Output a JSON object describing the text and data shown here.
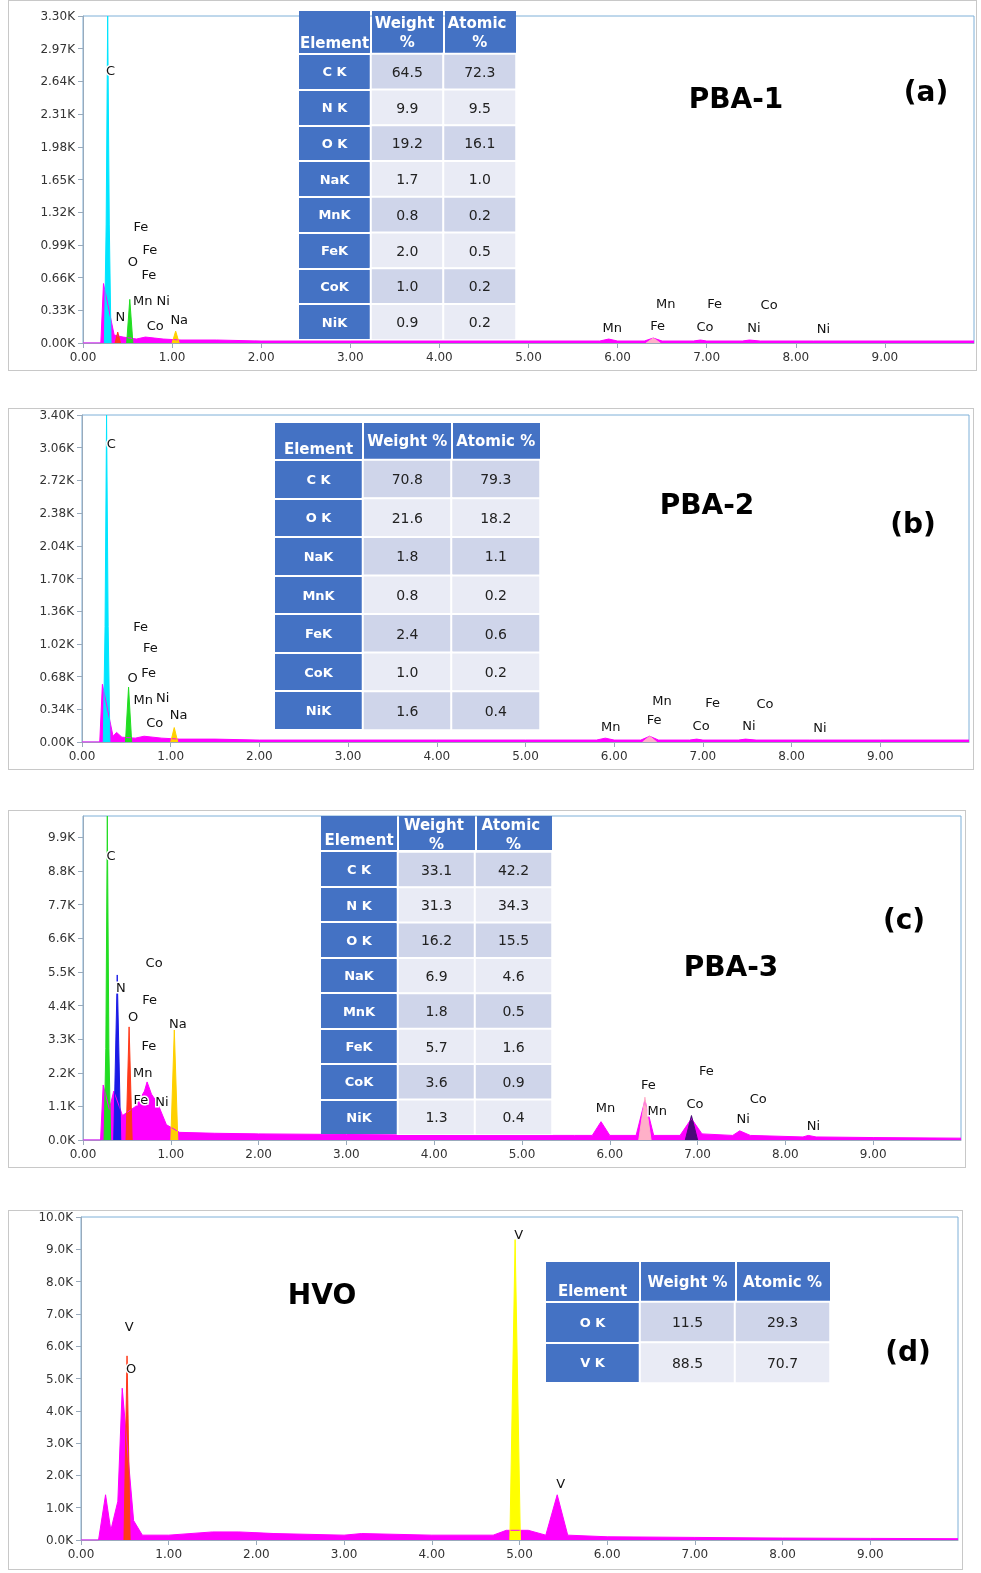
{
  "chart_data": [
    {
      "type": "area",
      "title": "PBA-1",
      "annotations": [
        "(a)",
        "C",
        "Fe",
        "O",
        "Fe",
        "Fe",
        "Mn",
        "Ni",
        "N",
        "Co",
        "Na",
        "Mn",
        "Mn",
        "Fe",
        "Fe",
        "Co",
        "Co",
        "Ni",
        "Ni"
      ],
      "xlim": [
        0,
        10
      ],
      "xticks": [
        {
          "value": 0,
          "label": "0.00"
        },
        {
          "value": 1,
          "label": "1.00"
        },
        {
          "value": 2,
          "label": "2.00"
        },
        {
          "value": 3,
          "label": "3.00"
        },
        {
          "value": 4,
          "label": "4.00"
        },
        {
          "value": 5,
          "label": "5.00"
        },
        {
          "value": 6,
          "label": "6.00"
        },
        {
          "value": 7,
          "label": "7.00"
        },
        {
          "value": 8,
          "label": "8.00"
        },
        {
          "value": 9,
          "label": "9.00"
        }
      ],
      "ylim": [
        0,
        3300
      ],
      "yticks": [
        {
          "value": 0,
          "label": "0.00K"
        },
        {
          "value": 330,
          "label": "0.33K"
        },
        {
          "value": 660,
          "label": "0.66K"
        },
        {
          "value": 990,
          "label": "0.99K"
        },
        {
          "value": 1320,
          "label": "1.32K"
        },
        {
          "value": 1650,
          "label": "1.65K"
        },
        {
          "value": 1980,
          "label": "1.98K"
        },
        {
          "value": 2310,
          "label": "2.31K"
        },
        {
          "value": 2640,
          "label": "2.64K"
        },
        {
          "value": 2970,
          "label": "2.97K"
        },
        {
          "value": 3300,
          "label": "3.30K"
        }
      ],
      "series": [
        {
          "color": "#ff00ff",
          "x": [
            0,
            0.2,
            0.23,
            0.35,
            0.45,
            0.6,
            0.7,
            0.8,
            0.9,
            1.1,
            1.5,
            2,
            3,
            4,
            5,
            5.8,
            5.9,
            6.0,
            6.3,
            6.4,
            6.5,
            6.85,
            6.93,
            7.0,
            7.4,
            7.48,
            7.6,
            8.2,
            8.26,
            8.35,
            9,
            10
          ],
          "values": [
            0,
            0,
            600,
            80,
            60,
            40,
            60,
            50,
            40,
            30,
            30,
            20,
            20,
            20,
            20,
            20,
            40,
            20,
            20,
            50,
            20,
            20,
            30,
            20,
            20,
            30,
            20,
            20,
            20,
            20,
            20,
            20
          ]
        },
        {
          "color": "#00e5ff",
          "x": [
            0.24,
            0.26,
            0.277,
            0.295,
            0.315
          ],
          "values": [
            0,
            1200,
            3300,
            1200,
            0
          ]
        },
        {
          "color": "#ff3a1a",
          "x": [
            0.36,
            0.39,
            0.42
          ],
          "values": [
            0,
            110,
            0
          ]
        },
        {
          "color": "#22dd22",
          "x": [
            0.49,
            0.525,
            0.56
          ],
          "values": [
            0,
            440,
            0
          ]
        },
        {
          "color": "#ffd000",
          "x": [
            1.0,
            1.04,
            1.08
          ],
          "values": [
            0,
            120,
            0
          ]
        },
        {
          "color": "#ffb0c8",
          "x": [
            6.32,
            6.4,
            6.48
          ],
          "values": [
            0,
            50,
            0
          ]
        }
      ]
    },
    {
      "type": "heatmap",
      "ylabel": "Element",
      "categories": [
        "Weight %",
        "Atomic %"
      ],
      "y_categories": [
        "C K",
        "N K",
        "O K",
        "NaK",
        "MnK",
        "FeK",
        "CoK",
        "NiK"
      ],
      "data_labels": true,
      "cells": [
        [
          64.5,
          72.3
        ],
        [
          9.9,
          9.5
        ],
        [
          19.2,
          16.1
        ],
        [
          1.7,
          1.0
        ],
        [
          0.8,
          0.2
        ],
        [
          2.0,
          0.5
        ],
        [
          1.0,
          0.2
        ],
        [
          0.9,
          0.2
        ]
      ],
      "cell_labels": [
        [
          "64.5",
          "72.3"
        ],
        [
          "9.9",
          "9.5"
        ],
        [
          "19.2",
          "16.1"
        ],
        [
          "1.7",
          "1.0"
        ],
        [
          "0.8",
          "0.2"
        ],
        [
          "2.0",
          "0.5"
        ],
        [
          "1.0",
          "0.2"
        ],
        [
          "0.9",
          "0.2"
        ]
      ]
    },
    {
      "type": "area",
      "title": "PBA-2",
      "annotations": [
        "(b)",
        "C",
        "Fe",
        "Fe",
        "O",
        "Fe",
        "Mn",
        "Ni",
        "Co",
        "Na",
        "Mn",
        "Mn",
        "Fe",
        "Fe",
        "Co",
        "Co",
        "Ni",
        "Ni"
      ],
      "xlim": [
        0,
        10
      ],
      "xticks": [
        {
          "value": 0,
          "label": "0.00"
        },
        {
          "value": 1,
          "label": "1.00"
        },
        {
          "value": 2,
          "label": "2.00"
        },
        {
          "value": 3,
          "label": "3.00"
        },
        {
          "value": 4,
          "label": "4.00"
        },
        {
          "value": 5,
          "label": "5.00"
        },
        {
          "value": 6,
          "label": "6.00"
        },
        {
          "value": 7,
          "label": "7.00"
        },
        {
          "value": 8,
          "label": "8.00"
        },
        {
          "value": 9,
          "label": "9.00"
        }
      ],
      "ylim": [
        0,
        3400
      ],
      "yticks": [
        {
          "value": 0,
          "label": "0.00K"
        },
        {
          "value": 340,
          "label": "0.34K"
        },
        {
          "value": 680,
          "label": "0.68K"
        },
        {
          "value": 1020,
          "label": "1.02K"
        },
        {
          "value": 1360,
          "label": "1.36K"
        },
        {
          "value": 1700,
          "label": "1.70K"
        },
        {
          "value": 2040,
          "label": "2.04K"
        },
        {
          "value": 2380,
          "label": "2.38K"
        },
        {
          "value": 2720,
          "label": "2.72K"
        },
        {
          "value": 3060,
          "label": "3.06K"
        },
        {
          "value": 3400,
          "label": "3.40K"
        }
      ],
      "series": [
        {
          "color": "#ff00ff",
          "x": [
            0,
            0.2,
            0.23,
            0.35,
            0.39,
            0.45,
            0.6,
            0.7,
            0.8,
            0.9,
            1.1,
            1.5,
            2,
            3,
            4,
            5,
            5.8,
            5.9,
            6.0,
            6.3,
            6.4,
            6.5,
            6.85,
            6.93,
            7.0,
            7.4,
            7.48,
            7.6,
            8.2,
            8.26,
            8.35,
            9,
            10
          ],
          "values": [
            0,
            0,
            600,
            60,
            100,
            50,
            40,
            60,
            50,
            40,
            30,
            30,
            20,
            20,
            20,
            20,
            20,
            40,
            20,
            20,
            60,
            20,
            20,
            30,
            20,
            20,
            30,
            20,
            20,
            20,
            20,
            20,
            20
          ]
        },
        {
          "color": "#00e5ff",
          "x": [
            0.24,
            0.26,
            0.277,
            0.295,
            0.315
          ],
          "values": [
            0,
            1200,
            3400,
            1200,
            0
          ]
        },
        {
          "color": "#22dd22",
          "x": [
            0.49,
            0.525,
            0.56
          ],
          "values": [
            0,
            570,
            0
          ]
        },
        {
          "color": "#ffd000",
          "x": [
            1.0,
            1.04,
            1.08
          ],
          "values": [
            0,
            150,
            0
          ]
        },
        {
          "color": "#ffb0c8",
          "x": [
            6.32,
            6.4,
            6.48
          ],
          "values": [
            0,
            60,
            0
          ]
        }
      ]
    },
    {
      "type": "heatmap",
      "ylabel": "Element",
      "categories": [
        "Weight %",
        "Atomic %"
      ],
      "y_categories": [
        "C K",
        "O K",
        "NaK",
        "MnK",
        "FeK",
        "CoK",
        "NiK"
      ],
      "data_labels": true,
      "cells": [
        [
          70.8,
          79.3
        ],
        [
          21.6,
          18.2
        ],
        [
          1.8,
          1.1
        ],
        [
          0.8,
          0.2
        ],
        [
          2.4,
          0.6
        ],
        [
          1.0,
          0.2
        ],
        [
          1.6,
          0.4
        ]
      ],
      "cell_labels": [
        [
          "70.8",
          "79.3"
        ],
        [
          "21.6",
          "18.2"
        ],
        [
          "1.8",
          "1.1"
        ],
        [
          "0.8",
          "0.2"
        ],
        [
          "2.4",
          "0.6"
        ],
        [
          "1.0",
          "0.2"
        ],
        [
          "1.6",
          "0.4"
        ]
      ]
    },
    {
      "type": "area",
      "title": "PBA-3",
      "annotations": [
        "(c)",
        "C",
        "Co",
        "N",
        "Fe",
        "O",
        "Na",
        "Fe",
        "Mn",
        "Fe",
        "Ni",
        "Mn",
        "Fe",
        "Mn",
        "Fe",
        "Co",
        "Co",
        "Ni",
        "Ni"
      ],
      "xlim": [
        0,
        10
      ],
      "xticks": [
        {
          "value": 0,
          "label": "0.00"
        },
        {
          "value": 1,
          "label": "1.00"
        },
        {
          "value": 2,
          "label": "2.00"
        },
        {
          "value": 3,
          "label": "3.00"
        },
        {
          "value": 4,
          "label": "4.00"
        },
        {
          "value": 5,
          "label": "5.00"
        },
        {
          "value": 6,
          "label": "6.00"
        },
        {
          "value": 7,
          "label": "7.00"
        },
        {
          "value": 8,
          "label": "8.00"
        },
        {
          "value": 9,
          "label": "9.00"
        }
      ],
      "ylim": [
        0,
        10600
      ],
      "yticks": [
        {
          "value": 0,
          "label": "0.0K"
        },
        {
          "value": 1100,
          "label": "1.1K"
        },
        {
          "value": 2200,
          "label": "2.2K"
        },
        {
          "value": 3300,
          "label": "3.3K"
        },
        {
          "value": 4400,
          "label": "4.4K"
        },
        {
          "value": 5500,
          "label": "5.5K"
        },
        {
          "value": 6600,
          "label": "6.6K"
        },
        {
          "value": 7700,
          "label": "7.7K"
        },
        {
          "value": 8800,
          "label": "8.8K"
        },
        {
          "value": 9900,
          "label": "9.9K"
        }
      ],
      "series": [
        {
          "color": "#ff00ff",
          "x": [
            0,
            0.2,
            0.23,
            0.3,
            0.35,
            0.45,
            0.6,
            0.7,
            0.73,
            0.78,
            0.85,
            0.95,
            1.1,
            1.5,
            2,
            3,
            4,
            5,
            5.6,
            5.8,
            5.9,
            6.0,
            6.3,
            6.4,
            6.5,
            6.8,
            6.93,
            7.05,
            7.4,
            7.48,
            7.6,
            8.2,
            8.26,
            8.35,
            9,
            10
          ],
          "values": [
            0,
            0,
            1800,
            1000,
            1600,
            800,
            1100,
            1600,
            1900,
            1500,
            1200,
            500,
            250,
            220,
            200,
            180,
            160,
            150,
            150,
            150,
            600,
            150,
            150,
            1300,
            150,
            150,
            700,
            200,
            150,
            300,
            150,
            100,
            150,
            100,
            80,
            60
          ]
        },
        {
          "color": "#22dd22",
          "x": [
            0.24,
            0.26,
            0.277,
            0.295,
            0.315
          ],
          "values": [
            0,
            3000,
            10600,
            3000,
            0
          ]
        },
        {
          "color": "#1a1ae6",
          "x": [
            0.35,
            0.39,
            0.43
          ],
          "values": [
            0,
            5400,
            0
          ]
        },
        {
          "color": "#ff3a1a",
          "x": [
            0.49,
            0.525,
            0.56
          ],
          "values": [
            0,
            3700,
            0
          ]
        },
        {
          "color": "#ffd000",
          "x": [
            1.0,
            1.04,
            1.08
          ],
          "values": [
            0,
            3600,
            0
          ]
        },
        {
          "color": "#ffb0c8",
          "x": [
            6.33,
            6.4,
            6.47
          ],
          "values": [
            0,
            1400,
            0
          ]
        },
        {
          "color": "#4a0a78",
          "x": [
            6.86,
            6.93,
            7.0
          ],
          "values": [
            0,
            800,
            0
          ]
        }
      ]
    },
    {
      "type": "heatmap",
      "ylabel": "Element",
      "categories": [
        "Weight %",
        "Atomic %"
      ],
      "y_categories": [
        "C K",
        "N K",
        "O K",
        "NaK",
        "MnK",
        "FeK",
        "CoK",
        "NiK"
      ],
      "data_labels": true,
      "cells": [
        [
          33.1,
          42.2
        ],
        [
          31.3,
          34.3
        ],
        [
          16.2,
          15.5
        ],
        [
          6.9,
          4.6
        ],
        [
          1.8,
          0.5
        ],
        [
          5.7,
          1.6
        ],
        [
          3.6,
          0.9
        ],
        [
          1.3,
          0.4
        ]
      ]
    },
    {
      "type": "area",
      "title": "HVO",
      "annotations": [
        "(d)",
        "V",
        "O",
        "V",
        "V"
      ],
      "xlim": [
        0,
        10
      ],
      "xticks": [
        {
          "value": 0,
          "label": "0.00"
        },
        {
          "value": 1,
          "label": "1.00"
        },
        {
          "value": 2,
          "label": "2.00"
        },
        {
          "value": 3,
          "label": "3.00"
        },
        {
          "value": 4,
          "label": "4.00"
        },
        {
          "value": 5,
          "label": "5.00"
        },
        {
          "value": 6,
          "label": "6.00"
        },
        {
          "value": 7,
          "label": "7.00"
        },
        {
          "value": 8,
          "label": "8.00"
        },
        {
          "value": 9,
          "label": "9.00"
        }
      ],
      "ylim": [
        0,
        10000
      ],
      "yticks": [
        {
          "value": 0,
          "label": "0.0K"
        },
        {
          "value": 1000,
          "label": "1.0K"
        },
        {
          "value": 2000,
          "label": "2.0K"
        },
        {
          "value": 3000,
          "label": "3.0K"
        },
        {
          "value": 4000,
          "label": "4.0K"
        },
        {
          "value": 5000,
          "label": "5.0K"
        },
        {
          "value": 6000,
          "label": "6.0K"
        },
        {
          "value": 7000,
          "label": "7.0K"
        },
        {
          "value": 8000,
          "label": "8.0K"
        },
        {
          "value": 9000,
          "label": "9.0K"
        },
        {
          "value": 10000,
          "label": "10.0K"
        }
      ],
      "series": [
        {
          "color": "#ff00ff",
          "x": [
            0,
            0.2,
            0.28,
            0.34,
            0.42,
            0.47,
            0.6,
            0.7,
            1.0,
            1.5,
            1.8,
            2.2,
            3,
            3.2,
            4,
            4.7,
            4.85,
            5.1,
            5.3,
            5.43,
            5.55,
            6,
            7,
            8,
            9,
            10
          ],
          "values": [
            0,
            0,
            1400,
            300,
            1200,
            4700,
            600,
            150,
            150,
            250,
            250,
            200,
            150,
            200,
            150,
            150,
            300,
            300,
            150,
            1400,
            150,
            100,
            80,
            60,
            50,
            40
          ]
        },
        {
          "color": "#ff3a1a",
          "x": [
            0.49,
            0.525,
            0.56
          ],
          "values": [
            0,
            5700,
            0
          ]
        },
        {
          "color": "#ffff00",
          "x": [
            4.89,
            4.95,
            5.01
          ],
          "values": [
            0,
            9300,
            0
          ]
        }
      ]
    },
    {
      "type": "heatmap",
      "ylabel": "Element",
      "categories": [
        "Weight %",
        "Atomic %"
      ],
      "y_categories": [
        "O K",
        "V K"
      ],
      "data_labels": true,
      "cells": [
        [
          11.5,
          29.3
        ],
        [
          88.5,
          70.7
        ]
      ]
    }
  ]
}
